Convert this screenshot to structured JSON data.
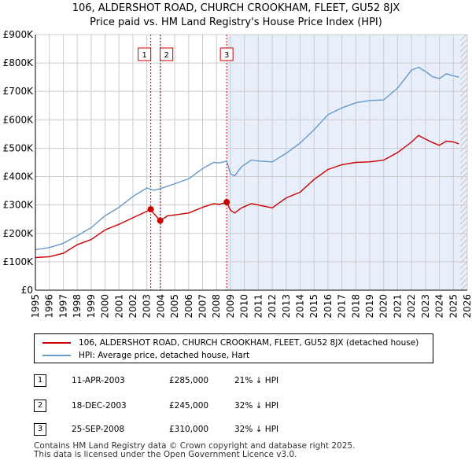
{
  "header": {
    "title_line1": "106, ALDERSHOT ROAD, CHURCH CROOKHAM, FLEET, GU52 8JX",
    "title_line2": "Price paid vs. HM Land Registry's House Price Index (HPI)"
  },
  "legend": {
    "property_label": "106, ALDERSHOT ROAD, CHURCH CROOKHAM, FLEET, GU52 8JX (detached house)",
    "hpi_label": "HPI: Average price, detached house, Hart"
  },
  "sales": [
    {
      "num": "1",
      "date": "11-APR-2003",
      "price": "£285,000",
      "hpi": "21% ↓ HPI"
    },
    {
      "num": "2",
      "date": "18-DEC-2003",
      "price": "£245,000",
      "hpi": "32% ↓ HPI"
    },
    {
      "num": "3",
      "date": "25-SEP-2008",
      "price": "£310,000",
      "hpi": "32% ↓ HPI"
    }
  ],
  "footer": {
    "line1": "Contains HM Land Registry data © Crown copyright and database right 2025.",
    "line2": "This data is licensed under the Open Government Licence v3.0."
  },
  "colors": {
    "property": "#cc0000",
    "hpi": "#6699cc",
    "shade": "#e8eefa",
    "grid": "#cccccc",
    "vline": "#cc0000"
  },
  "chart_data": {
    "type": "line",
    "title": "Price paid vs. HM Land Registry's House Price Index (HPI)",
    "xlim": [
      1995,
      2026
    ],
    "ylim": [
      0,
      900000
    ],
    "x_ticks": [
      1995,
      1996,
      1997,
      1998,
      1999,
      2000,
      2001,
      2002,
      2003,
      2004,
      2005,
      2006,
      2007,
      2008,
      2009,
      2010,
      2011,
      2012,
      2013,
      2014,
      2015,
      2016,
      2017,
      2018,
      2019,
      2020,
      2021,
      2022,
      2023,
      2024,
      2025,
      2026
    ],
    "y_ticks": [
      0,
      100000,
      200000,
      300000,
      400000,
      500000,
      600000,
      700000,
      800000,
      900000
    ],
    "y_tick_labels": [
      "£0",
      "£100K",
      "£200K",
      "£300K",
      "£400K",
      "£500K",
      "£600K",
      "£700K",
      "£800K",
      "£900K"
    ],
    "sale_markers": [
      {
        "label": "1",
        "x": 2003.28,
        "y": 285000
      },
      {
        "label": "2",
        "x": 2003.96,
        "y": 245000
      },
      {
        "label": "3",
        "x": 2008.73,
        "y": 310000
      }
    ],
    "shaded_from": 2008.73,
    "hatched_from": 2025.5,
    "series": [
      {
        "name": "106, ALDERSHOT ROAD, CHURCH CROOKHAM, FLEET, GU52 8JX (detached house)",
        "color": "#cc0000",
        "x": [
          1995,
          1996,
          1997,
          1998,
          1999,
          2000,
          2001,
          2002,
          2003,
          2003.28,
          2003.5,
          2003.96,
          2004.5,
          2005,
          2006,
          2007,
          2007.8,
          2008.2,
          2008.73,
          2009.0,
          2009.3,
          2009.8,
          2010.5,
          2011,
          2012,
          2013,
          2014,
          2015,
          2016,
          2017,
          2018,
          2019,
          2020,
          2021,
          2022,
          2022.5,
          2023,
          2023.5,
          2024,
          2024.5,
          2025,
          2025.4
        ],
        "y": [
          115000,
          118000,
          130000,
          160000,
          178000,
          212000,
          232000,
          255000,
          278000,
          285000,
          270000,
          245000,
          262000,
          265000,
          272000,
          292000,
          305000,
          302000,
          310000,
          282000,
          272000,
          290000,
          305000,
          300000,
          290000,
          325000,
          345000,
          390000,
          425000,
          442000,
          450000,
          452000,
          458000,
          485000,
          522000,
          545000,
          532000,
          520000,
          510000,
          525000,
          522000,
          515000
        ]
      },
      {
        "name": "HPI: Average price, detached house, Hart",
        "color": "#6699cc",
        "x": [
          1995,
          1996,
          1997,
          1998,
          1999,
          2000,
          2001,
          2002,
          2003,
          2003.5,
          2004,
          2005,
          2006,
          2007,
          2007.8,
          2008.2,
          2008.73,
          2009.0,
          2009.3,
          2009.8,
          2010.5,
          2011,
          2012,
          2013,
          2014,
          2015,
          2016,
          2017,
          2018,
          2019,
          2020,
          2021,
          2022,
          2022.5,
          2023,
          2023.5,
          2024,
          2024.5,
          2025,
          2025.4
        ],
        "y": [
          143000,
          150000,
          165000,
          192000,
          220000,
          262000,
          292000,
          330000,
          360000,
          352000,
          358000,
          375000,
          392000,
          428000,
          450000,
          448000,
          455000,
          410000,
          402000,
          435000,
          458000,
          455000,
          452000,
          482000,
          518000,
          565000,
          618000,
          642000,
          660000,
          668000,
          670000,
          712000,
          775000,
          785000,
          770000,
          752000,
          745000,
          762000,
          755000,
          750000
        ]
      }
    ]
  }
}
